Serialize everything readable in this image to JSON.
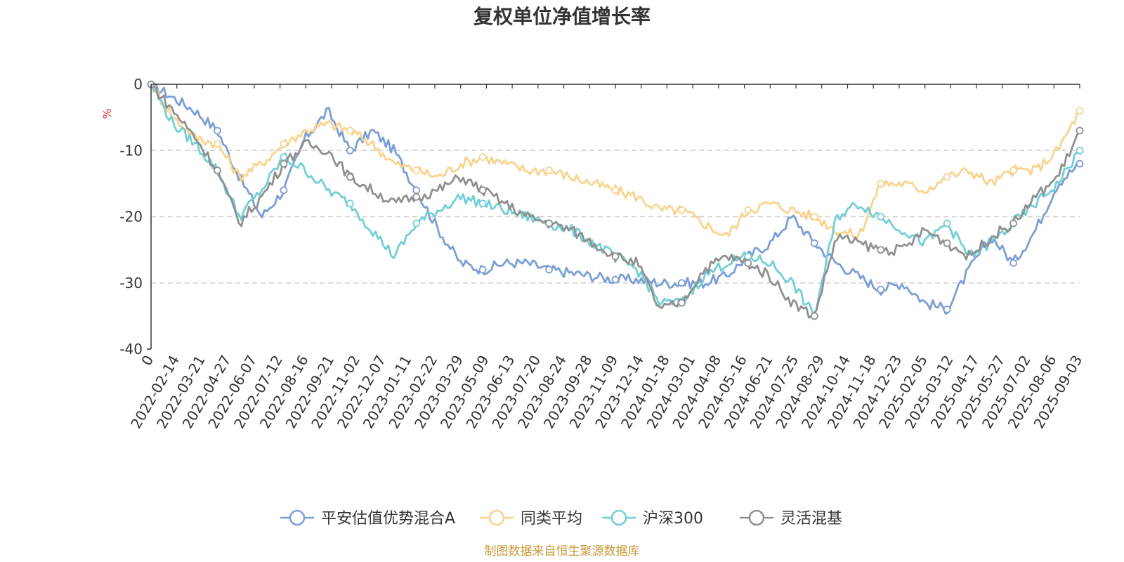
{
  "chart_data": {
    "type": "line",
    "title": "复权单位净值增长率",
    "ylabel": "%",
    "ylim": [
      -40,
      0
    ],
    "yticks": [
      0,
      -10,
      -20,
      -30,
      -40
    ],
    "x_tick_labels": [
      "0",
      "2022-02-14",
      "2022-03-21",
      "2022-04-27",
      "2022-06-07",
      "2022-07-12",
      "2022-08-16",
      "2022-09-21",
      "2022-11-02",
      "2022-12-07",
      "2023-01-11",
      "2023-02-22",
      "2023-03-29",
      "2023-05-09",
      "2023-06-13",
      "2023-07-20",
      "2023-08-24",
      "2023-09-28",
      "2023-11-09",
      "2023-12-14",
      "2024-01-18",
      "2024-03-01",
      "2024-04-08",
      "2024-05-16",
      "2024-06-21",
      "2024-07-25",
      "2024-08-29",
      "2024-10-14",
      "2024-11-18",
      "2024-12-23",
      "2025-02-05",
      "2025-03-12",
      "2025-04-17",
      "2025-05-27",
      "2025-07-02",
      "2025-08-06",
      "2025-09-03"
    ],
    "grid": "dashed-horizontal",
    "legend_position": "bottom",
    "series": [
      {
        "name": "平安估值优势混合A",
        "color": "#7b9fd4",
        "values": [
          0,
          -2,
          -4,
          -7,
          -14,
          -20,
          -16,
          -8,
          -4,
          -10,
          -7,
          -10,
          -16,
          -22,
          -27,
          -28,
          -27,
          -27,
          -28,
          -28.5,
          -29,
          -29.5,
          -29.5,
          -30,
          -30,
          -30,
          -29,
          -26,
          -24,
          -20,
          -24,
          -27,
          -29,
          -31,
          -30,
          -33,
          -34,
          -28,
          -23,
          -27,
          -22,
          -15,
          -12
        ]
      },
      {
        "name": "同类平均",
        "color": "#f9d38d",
        "values": [
          0,
          -5,
          -8,
          -9,
          -14,
          -12,
          -9,
          -7,
          -6,
          -7,
          -9,
          -12,
          -13,
          -14,
          -12,
          -11,
          -12,
          -13,
          -13,
          -14,
          -15,
          -16,
          -17,
          -19,
          -19,
          -21,
          -23,
          -19,
          -18,
          -19,
          -20,
          -22,
          -23,
          -15,
          -15,
          -16,
          -14,
          -13,
          -15,
          -13,
          -13,
          -10,
          -4
        ]
      },
      {
        "name": "沪深300",
        "color": "#72cfd4",
        "values": [
          0,
          -6,
          -9,
          -13,
          -20,
          -16,
          -11,
          -13,
          -16,
          -18,
          -22,
          -26,
          -21,
          -19,
          -17,
          -18,
          -19,
          -20,
          -21,
          -22,
          -24,
          -26,
          -28,
          -33,
          -33,
          -29,
          -27,
          -26,
          -27,
          -30,
          -35,
          -20,
          -18,
          -20,
          -22,
          -24,
          -21,
          -26,
          -24,
          -21,
          -18,
          -15,
          -10
        ]
      },
      {
        "name": "灵活混基",
        "color": "#909090",
        "values": [
          0,
          -4,
          -8,
          -13,
          -21,
          -17,
          -12,
          -9,
          -10,
          -14,
          -16,
          -18,
          -17,
          -16,
          -14,
          -16,
          -18,
          -20,
          -21,
          -22,
          -24,
          -26,
          -27,
          -34,
          -33,
          -28,
          -26,
          -27,
          -29,
          -33,
          -35,
          -23,
          -24,
          -25,
          -25,
          -22,
          -24,
          -26,
          -23,
          -21,
          -17,
          -14,
          -7
        ]
      }
    ]
  },
  "source_note": "制图数据来自恒生聚源数据库"
}
